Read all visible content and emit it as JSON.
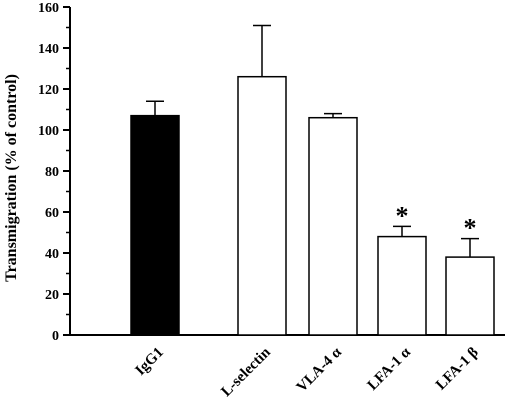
{
  "chart_data": {
    "type": "bar",
    "title": "",
    "xlabel": "",
    "ylabel": "Transmigration (% of control)",
    "ylim": [
      0,
      160
    ],
    "yticks": [
      0,
      20,
      40,
      60,
      80,
      100,
      120,
      140,
      160
    ],
    "grid": false,
    "categories": [
      "IgG1",
      "L-selectin",
      "VLA-4 α",
      "LFA-1 α",
      "LFA-1 β"
    ],
    "values": [
      107,
      126,
      106,
      48,
      38
    ],
    "errors": [
      7,
      25,
      2,
      5,
      9
    ],
    "fills": [
      "#000000",
      "#ffffff",
      "#ffffff",
      "#ffffff",
      "#ffffff"
    ],
    "annotations": [
      "",
      "",
      "",
      "*",
      "*"
    ]
  }
}
